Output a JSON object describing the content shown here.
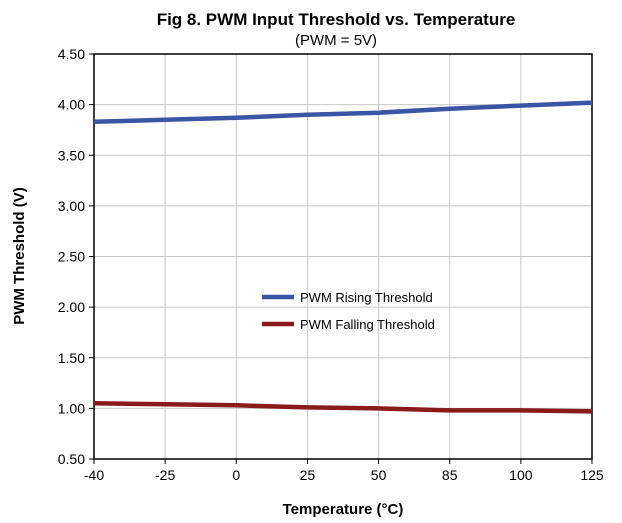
{
  "chart_data": {
    "type": "line",
    "title": "Fig 8.  PWM Input Threshold vs. Temperature",
    "subtitle": "(PWM = 5V)",
    "xlabel": "Temperature (°C)",
    "ylabel": "PWM Threshold (V)",
    "categories": [
      "-40",
      "-25",
      "0",
      "25",
      "50",
      "85",
      "100",
      "125"
    ],
    "y_ticks": [
      "0.50",
      "1.00",
      "1.50",
      "2.00",
      "2.50",
      "3.00",
      "3.50",
      "4.00",
      "4.50"
    ],
    "ylim": [
      0.5,
      4.5
    ],
    "grid": true,
    "legend_position": "center",
    "series": [
      {
        "name": "PWM Rising Threshold",
        "color": "#3a55a4",
        "values": [
          3.83,
          3.85,
          3.87,
          3.9,
          3.92,
          3.96,
          3.99,
          4.02
        ]
      },
      {
        "name": "PWM Falling Threshold",
        "color": "#8b1a1a",
        "values": [
          1.05,
          1.04,
          1.03,
          1.01,
          1.0,
          0.98,
          0.98,
          0.97
        ]
      }
    ]
  }
}
